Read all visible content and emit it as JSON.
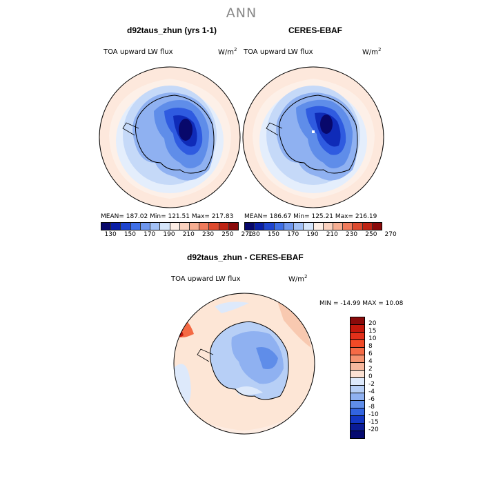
{
  "title": "ANN",
  "panels": [
    {
      "name": "d92taus_zhun (yrs 1-1)",
      "variable": "TOA upward LW flux",
      "units": "W/m",
      "units_sup": "2",
      "stats": "MEAN= 187.02   Min= 121.51   Max= 217.83"
    },
    {
      "name": "CERES-EBAF",
      "variable": "TOA upward LW flux",
      "units": "W/m",
      "units_sup": "2",
      "stats": "MEAN= 186.67   Min= 125.21   Max= 216.19"
    }
  ],
  "difference": {
    "name": "d92taus_zhun - CERES-EBAF",
    "variable": "TOA upward LW flux",
    "units": "W/m",
    "units_sup": "2",
    "minmax": "MIN = -14.99  MAX =  10.08"
  },
  "colorbar_abs": {
    "labels": [
      "130",
      "150",
      "170",
      "190",
      "210",
      "230",
      "250",
      "270"
    ],
    "colors": [
      "#08086b",
      "#0a1fa6",
      "#1f45cf",
      "#3f6fe6",
      "#6f97ee",
      "#a3c1f6",
      "#d6e6fb",
      "#fdeee5",
      "#fbd2bf",
      "#f7ae92",
      "#f07b5c",
      "#dd4a2e",
      "#bf2414",
      "#8a0a0a"
    ]
  },
  "colorbar_diff": {
    "labels": [
      "20",
      "15",
      "10",
      "8",
      "6",
      "4",
      "2",
      "0",
      "-2",
      "-4",
      "-6",
      "-8",
      "-10",
      "-15",
      "-20"
    ],
    "colors": [
      "#8a0a0a",
      "#c4180c",
      "#e3301a",
      "#f24a26",
      "#f56b46",
      "#f59370",
      "#f7b89e",
      "#fbe1d3",
      "#dde9fb",
      "#b7cff6",
      "#8fb1f1",
      "#5f8de9",
      "#3264e0",
      "#1337c4",
      "#0a1b96",
      "#050a70"
    ]
  }
}
